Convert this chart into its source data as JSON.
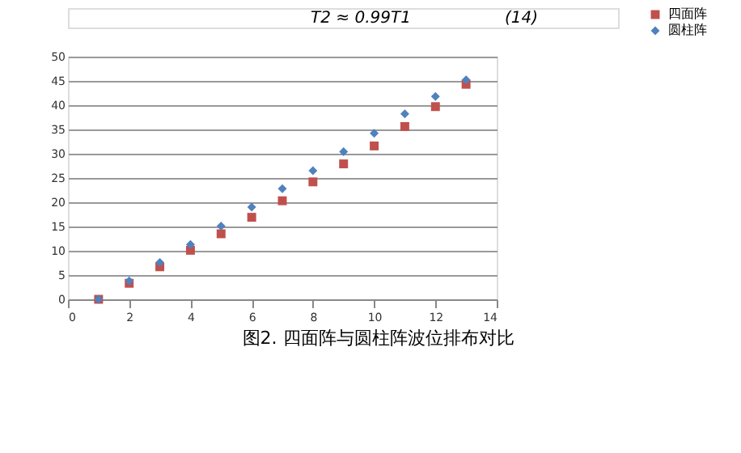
{
  "chart_data": {
    "type": "scatter",
    "title": "图2. 四面阵与圆柱阵波位排布对比",
    "annotations": [
      "T2 ≈ 0.99T1",
      "(14)"
    ],
    "x": [
      1,
      2,
      3,
      4,
      5,
      6,
      7,
      8,
      9,
      10,
      11,
      12,
      13
    ],
    "series": [
      {
        "name": "四面阵",
        "color": "#c0504d",
        "marker": "square",
        "values": [
          0,
          3.3,
          6.7,
          10.1,
          13.5,
          16.9,
          20.3,
          24.2,
          27.9,
          31.6,
          35.6,
          39.7,
          44.3
        ]
      },
      {
        "name": "圆柱阵",
        "color": "#4f81bd",
        "marker": "diamond",
        "values": [
          0,
          3.8,
          7.6,
          11.3,
          15.1,
          19,
          22.8,
          26.5,
          30.4,
          34.2,
          38.2,
          41.8,
          45.2
        ]
      }
    ],
    "xlim": [
      0,
      14
    ],
    "xticks": [
      0,
      2,
      4,
      6,
      8,
      10,
      12,
      14
    ],
    "ylim": [
      0,
      50
    ],
    "yticks": [
      0,
      5,
      10,
      15,
      20,
      25,
      30,
      35,
      40,
      45,
      50
    ],
    "grid": "y",
    "legend": "right"
  }
}
